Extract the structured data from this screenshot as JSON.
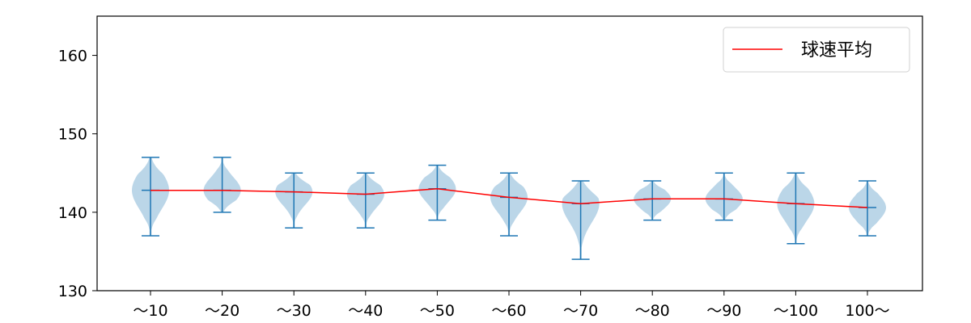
{
  "chart_data": {
    "type": "violin",
    "title": "",
    "xlabel": "",
    "ylabel": "",
    "ylim": [
      130,
      165
    ],
    "yticks": [
      130,
      140,
      150,
      160
    ],
    "categories": [
      "～10",
      "～20",
      "～30",
      "～40",
      "～50",
      "～60",
      "～70",
      "～80",
      "～90",
      "～100",
      "100～"
    ],
    "violins": [
      {
        "min": 137,
        "max": 147,
        "mean": 142.8
      },
      {
        "min": 140,
        "max": 147,
        "mean": 142.8
      },
      {
        "min": 138,
        "max": 145,
        "mean": 142.6
      },
      {
        "min": 138,
        "max": 145,
        "mean": 142.3
      },
      {
        "min": 139,
        "max": 146,
        "mean": 143.0
      },
      {
        "min": 137,
        "max": 145,
        "mean": 141.9
      },
      {
        "min": 134,
        "max": 144,
        "mean": 141.1
      },
      {
        "min": 139,
        "max": 144,
        "mean": 141.7
      },
      {
        "min": 139,
        "max": 145,
        "mean": 141.7
      },
      {
        "min": 136,
        "max": 145,
        "mean": 141.1
      },
      {
        "min": 137,
        "max": 144,
        "mean": 140.6
      }
    ],
    "series": [
      {
        "name": "球速平均",
        "values": [
          142.8,
          142.8,
          142.6,
          142.3,
          143.0,
          141.9,
          141.1,
          141.7,
          141.7,
          141.1,
          140.6
        ]
      }
    ],
    "legend_position": "top-right",
    "colors": {
      "violin_fill": "#1f77b4",
      "violin_line": "#1f77b4",
      "mean_line": "#ff0000"
    }
  }
}
